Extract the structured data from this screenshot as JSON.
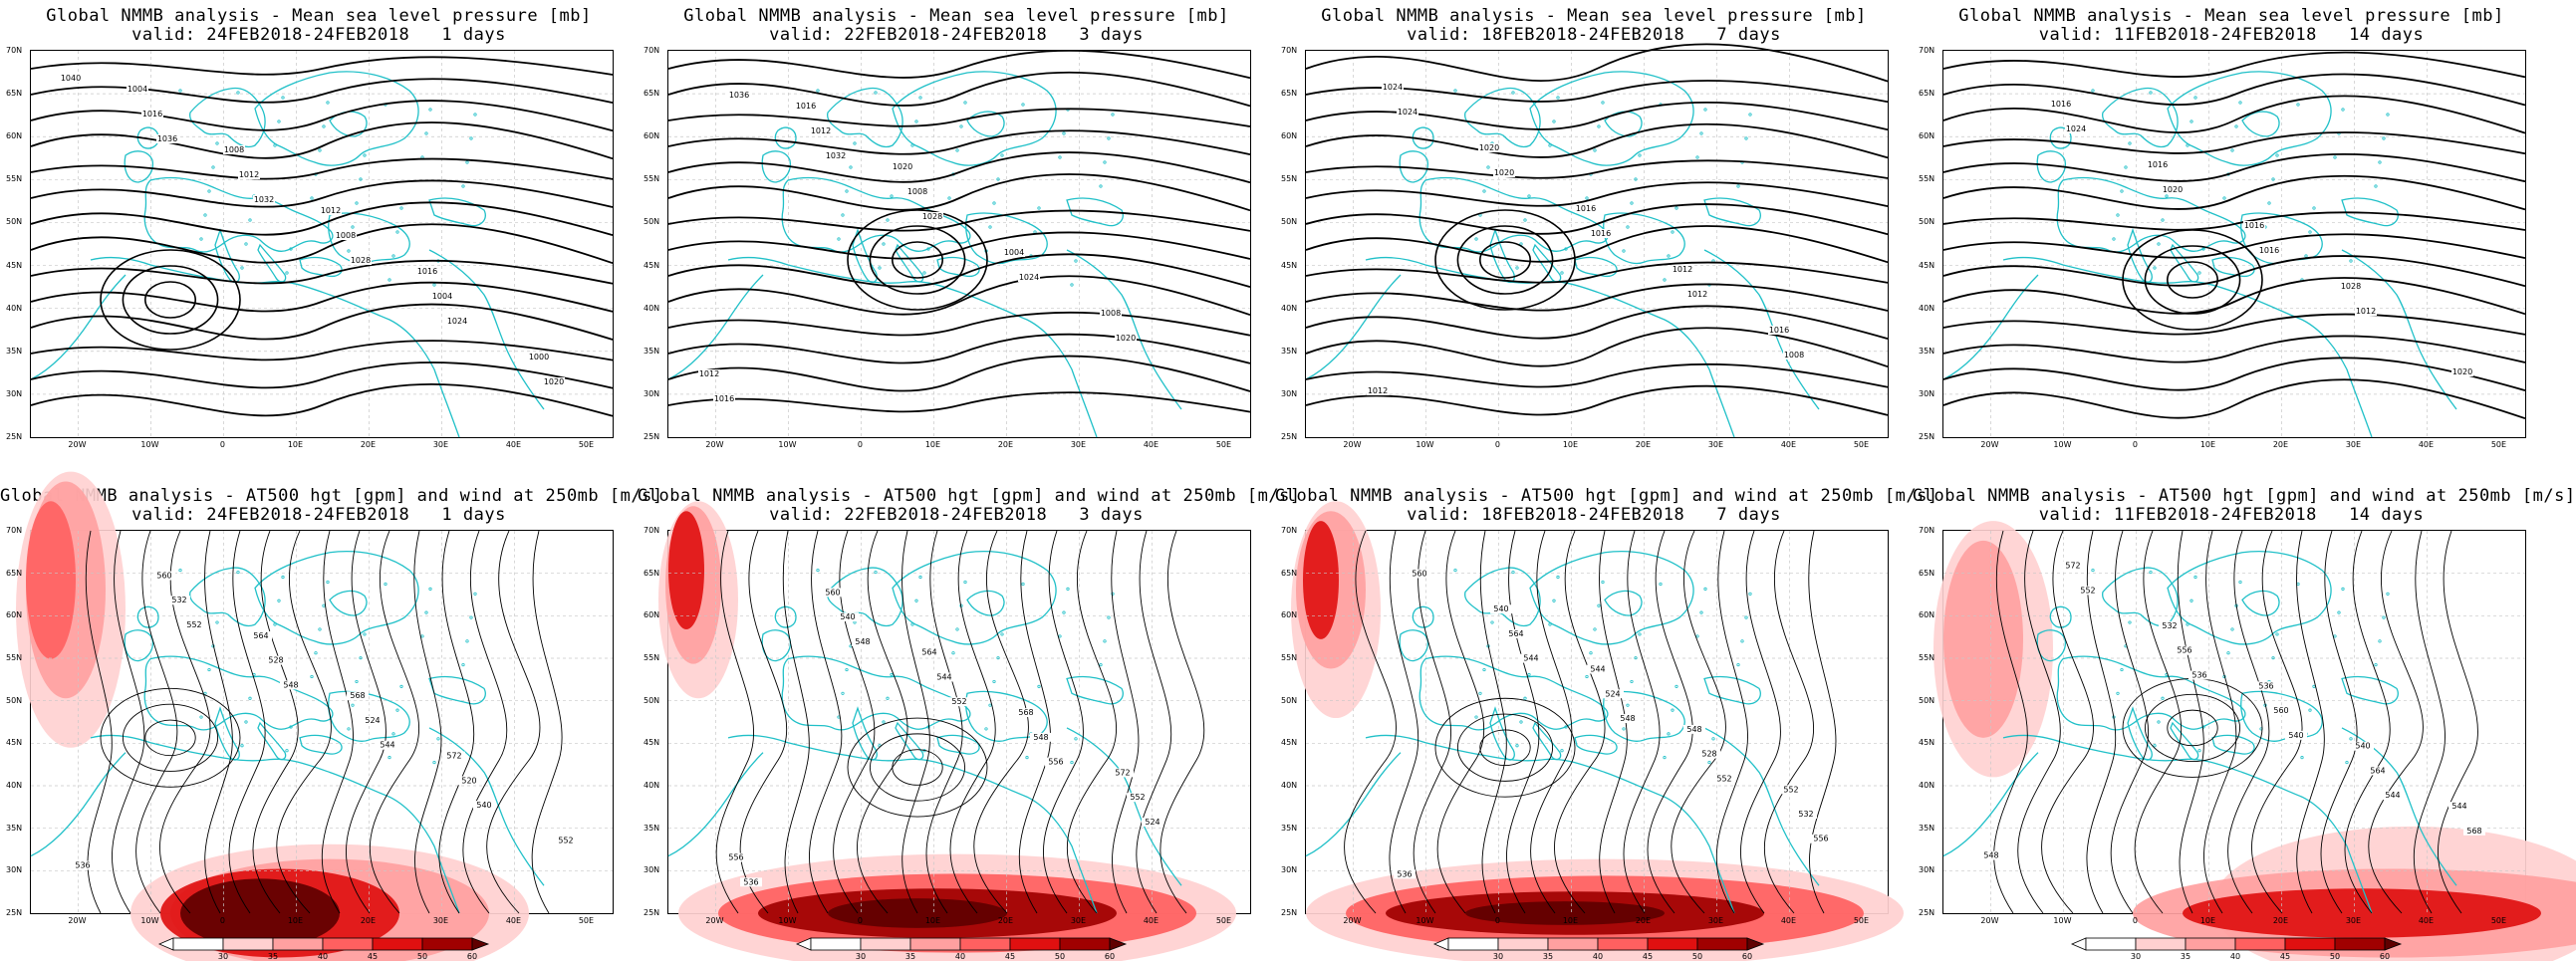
{
  "colors": {
    "coast": "#20c0c8",
    "isobar": "#000000",
    "grid": "#c8c8c8",
    "wind_scale": [
      "#ffffff",
      "#ffd0d0",
      "#ffa0a0",
      "#ff6060",
      "#e01010",
      "#a00000",
      "#600000"
    ]
  },
  "lat_labels": [
    "70N",
    "65N",
    "60N",
    "55N",
    "50N",
    "45N",
    "40N",
    "35N",
    "30N",
    "25N"
  ],
  "lon_labels": [
    "20W",
    "10W",
    "0",
    "10E",
    "20E",
    "30E",
    "40E",
    "50E"
  ],
  "colorbar_ticks": [
    "30",
    "35",
    "40",
    "45",
    "50",
    "60"
  ],
  "panels": [
    {
      "title1": "Global NMMB analysis - Mean sea level pressure [mb]",
      "title2": "valid: 24FEB2018-24FEB2018   1 days",
      "kind": "mslp",
      "labels": [
        "1040",
        "1036",
        "1032",
        "1028",
        "1024",
        "1020",
        "1016",
        "1012",
        "1008",
        "1004",
        "1000",
        "1004",
        "1008",
        "1012",
        "1016"
      ]
    },
    {
      "title1": "Global NMMB analysis - Mean sea level pressure [mb]",
      "title2": "valid: 22FEB2018-24FEB2018   3 days",
      "kind": "mslp",
      "labels": [
        "1036",
        "1032",
        "1028",
        "1024",
        "1020",
        "1016",
        "1012",
        "1008",
        "1004",
        "1008",
        "1012",
        "1016",
        "1020"
      ]
    },
    {
      "title1": "Global NMMB analysis - Mean sea level pressure [mb]",
      "title2": "valid: 18FEB2018-24FEB2018   7 days",
      "kind": "mslp",
      "labels": [
        "1024",
        "1020",
        "1016",
        "1012",
        "1008",
        "1024",
        "1020",
        "1016",
        "1012",
        "1016",
        "1012"
      ]
    },
    {
      "title1": "Global NMMB analysis - Mean sea level pressure [mb]",
      "title2": "valid: 11FEB2018-24FEB2018   14 days",
      "kind": "mslp",
      "labels": [
        "1024",
        "1020",
        "1016",
        "1012",
        "1020",
        "1016",
        "1016",
        "1016",
        "1028"
      ]
    },
    {
      "title1": "Global NMMB analysis - AT500 hgt [gpm] and wind at 250mb [m/s]",
      "title2": "valid: 24FEB2018-24FEB2018   1 days",
      "kind": "z500",
      "labels": [
        "552",
        "548",
        "544",
        "540",
        "536",
        "532",
        "528",
        "524",
        "520",
        "552",
        "560",
        "564",
        "568",
        "572"
      ]
    },
    {
      "title1": "Global NMMB analysis - AT500 hgt [gpm] and wind at 250mb [m/s]",
      "title2": "valid: 22FEB2018-24FEB2018   3 days",
      "kind": "z500",
      "labels": [
        "548",
        "552",
        "556",
        "524",
        "536",
        "540",
        "544",
        "548",
        "552",
        "556",
        "560",
        "564",
        "568",
        "572"
      ]
    },
    {
      "title1": "Global NMMB analysis - AT500 hgt [gpm] and wind at 250mb [m/s]",
      "title2": "valid: 18FEB2018-24FEB2018   7 days",
      "kind": "z500",
      "labels": [
        "544",
        "548",
        "552",
        "556",
        "560",
        "564",
        "524",
        "528",
        "532",
        "536",
        "540",
        "544",
        "548",
        "552"
      ]
    },
    {
      "title1": "Global NMMB analysis - AT500 hgt [gpm] and wind at 250mb [m/s]",
      "title2": "valid: 11FEB2018-24FEB2018   14 days",
      "kind": "z500",
      "labels": [
        "536",
        "540",
        "544",
        "548",
        "552",
        "556",
        "560",
        "564",
        "568",
        "572",
        "532",
        "536",
        "540",
        "544"
      ]
    }
  ]
}
